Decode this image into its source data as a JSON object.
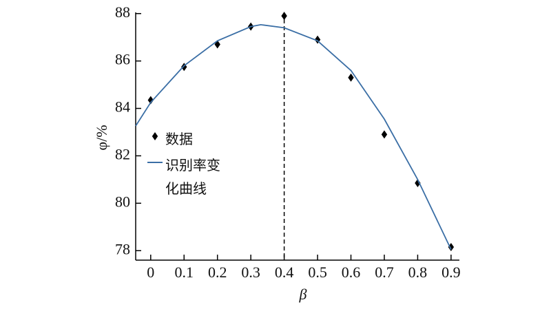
{
  "chart_data": {
    "type": "scatter-curve",
    "xlabel": "β",
    "ylabel": "φ/%",
    "xlim": [
      -0.045,
      0.925
    ],
    "ylim": [
      77.6,
      88.05
    ],
    "xticks": [
      0,
      0.1,
      0.2,
      0.3,
      0.4,
      0.5,
      0.6,
      0.7,
      0.8,
      0.9
    ],
    "yticks": [
      78,
      80,
      82,
      84,
      86,
      88
    ],
    "vline": 0.4,
    "legend": "left",
    "series": [
      {
        "name": "数据",
        "kind": "points",
        "color": "#000000",
        "x": [
          0,
          0.1,
          0.2,
          0.3,
          0.4,
          0.5,
          0.6,
          0.7,
          0.8,
          0.9
        ],
        "values": [
          84.35,
          85.75,
          86.7,
          87.45,
          87.9,
          86.9,
          85.3,
          82.9,
          80.85,
          78.15
        ]
      },
      {
        "name": "识别率变化曲线",
        "kind": "line",
        "color": "#3a6ea5",
        "x": [
          -0.045,
          0,
          0.1,
          0.2,
          0.3,
          0.33,
          0.4,
          0.5,
          0.6,
          0.7,
          0.8,
          0.9
        ],
        "values": [
          83.26,
          84.25,
          85.8,
          86.85,
          87.45,
          87.53,
          87.4,
          86.85,
          85.6,
          83.55,
          81.0,
          78.05
        ]
      }
    ]
  }
}
